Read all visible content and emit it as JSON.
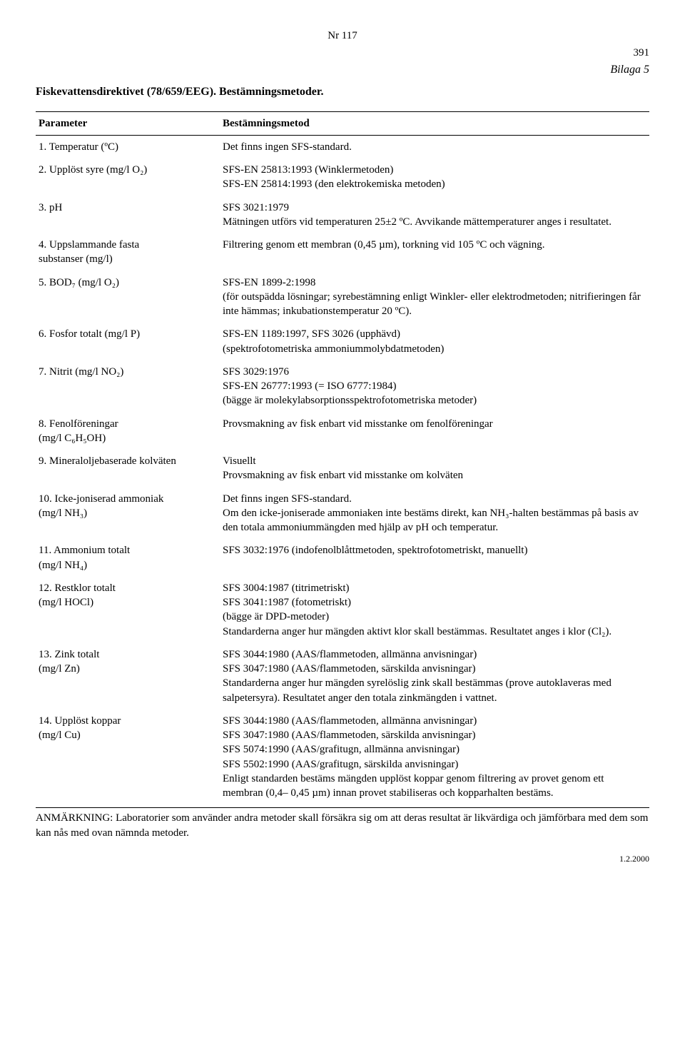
{
  "header": {
    "nr": "Nr 117",
    "pagenum": "391",
    "bilaga": "Bilaga 5"
  },
  "title": "Fiskevattensdirektivet (78/659/EEG). Bestämningsmetoder.",
  "columns": {
    "parameter": "Parameter",
    "method": "Bestämningsmetod"
  },
  "rows": [
    {
      "param": "1. Temperatur (ºC)",
      "method": "Det finns ingen SFS-standard."
    },
    {
      "param": "2. Upplöst syre   (mg/l O₂)",
      "method": "SFS-EN 25813:1993 (Winklermetoden)\nSFS-EN 25814:1993 (den elektrokemiska metoden)"
    },
    {
      "param": "3. pH",
      "method": "SFS 3021:1979\nMätningen utförs vid temperaturen 25±2 ºC. Avvikande mättemperaturer anges i resultatet."
    },
    {
      "param": "4. Uppslammande fasta\n    substanser   (mg/l)",
      "method": "Filtrering genom ett membran (0,45 µm), torkning vid 105 ºC och vägning."
    },
    {
      "param": "5. BOD₇   (mg/l O₂)",
      "method": "SFS-EN 1899-2:1998\n(för outspädda lösningar; syrebestämning enligt  Winkler- eller elektrodmetoden; nitrifieringen får inte hämmas; inkubationstemperatur 20 ºC)."
    },
    {
      "param": "6. Fosfor totalt  (mg/l P)",
      "method": "SFS-EN 1189:1997, SFS 3026 (upphävd)\n(spektrofotometriska ammoniummolybdatmetoden)"
    },
    {
      "param": "7. Nitrit  (mg/l NO₂)",
      "method": "SFS 3029:1976\nSFS-EN 26777:1993 (= ISO 6777:1984)\n(bägge är molekylabsorptionsspektrofotometriska metoder)"
    },
    {
      "param": "8. Fenolföreningar\n    (mg/l C₆H₅OH)",
      "method": "Provsmakning av fisk enbart vid misstanke om fenolföreningar"
    },
    {
      "param": "9. Mineraloljebaserade kolväten",
      "method": "Visuellt\nProvsmakning av fisk enbart vid misstanke om kolväten"
    },
    {
      "param": "10. Icke-joniserad ammoniak\n      (mg/l NH₃)",
      "method": "Det finns ingen SFS-standard.\nOm den icke-joniserade ammoniaken inte bestäms direkt, kan NH₃-halten bestämmas på basis av den totala ammoniummängden med hjälp av pH och temperatur."
    },
    {
      "param": "11. Ammonium totalt\n      (mg/l NH₄)",
      "method": "SFS 3032:1976 (indofenolblåttmetoden, spektrofotometriskt, manuellt)"
    },
    {
      "param": "12. Restklor totalt\n      (mg/l HOCl)",
      "method": "SFS 3004:1987 (titrimetriskt)\nSFS 3041:1987 (fotometriskt)\n(bägge är DPD-metoder)\nStandarderna anger hur mängden aktivt klor skall bestämmas. Resultatet anges i klor (Cl₂)."
    },
    {
      "param": "13. Zink totalt\n      (mg/l Zn)",
      "method": "SFS 3044:1980 (AAS/flammetoden, allmänna anvisningar)\nSFS 3047:1980 (AAS/flammetoden, särskilda anvisningar)\nStandarderna anger hur mängden syrelöslig zink skall bestämmas (prove autoklaveras med salpetersyra). Resultatet anger den totala zinkmängden i vattnet."
    },
    {
      "param": "14. Upplöst koppar\n      (mg/l Cu)",
      "method": "SFS 3044:1980 (AAS/flammetoden, allmänna anvisningar)\nSFS 3047:1980 (AAS/flammetoden, särskilda anvisningar)\nSFS 5074:1990 (AAS/grafitugn, allmänna anvisningar)\nSFS 5502:1990 (AAS/grafitugn, särskilda anvisningar)\nEnligt standarden bestäms mängden upplöst koppar genom filtrering av provet genom ett membran  (0,4– 0,45 µm) innan provet stabiliseras och kopparhalten bestäms."
    }
  ],
  "footnote": "ANMÄRKNING: Laboratorier som använder andra metoder skall försäkra sig om att deras resultat är likvärdiga och jämförbara med dem som kan nås med ovan nämnda metoder.",
  "footer_date": "1.2.2000"
}
